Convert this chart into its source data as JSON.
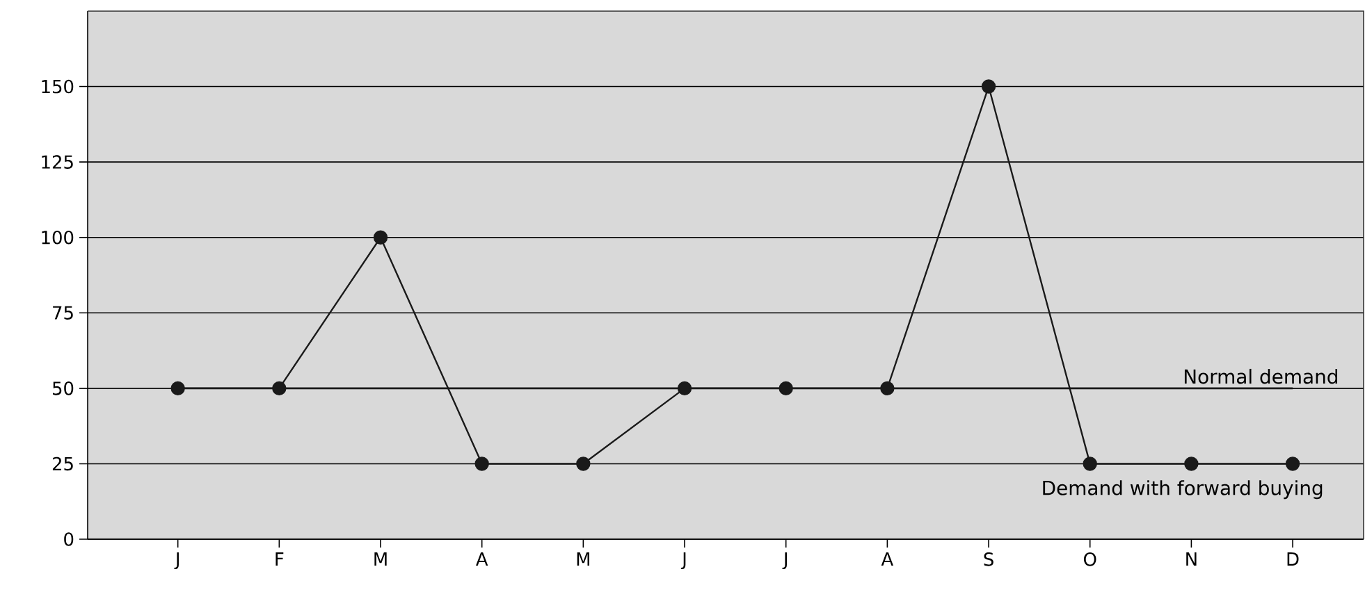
{
  "chart_data": {
    "type": "line",
    "categories": [
      "J",
      "F",
      "M",
      "A",
      "M",
      "J",
      "J",
      "A",
      "S",
      "O",
      "N",
      "D"
    ],
    "series": [
      {
        "name": "Demand with forward buying",
        "color": "#1a1a1a",
        "values": [
          50,
          50,
          100,
          25,
          25,
          50,
          50,
          50,
          150,
          25,
          25,
          25
        ]
      }
    ],
    "ref_lines": [
      {
        "axis": "y",
        "value": 50,
        "label": "Normal demand",
        "color": "#1a1a1a"
      }
    ],
    "ylim": [
      0,
      175
    ],
    "yticks": [
      0,
      25,
      50,
      75,
      100,
      125,
      150
    ],
    "grid": "y",
    "marker": "circle",
    "line_style": "solid",
    "legend": false
  }
}
